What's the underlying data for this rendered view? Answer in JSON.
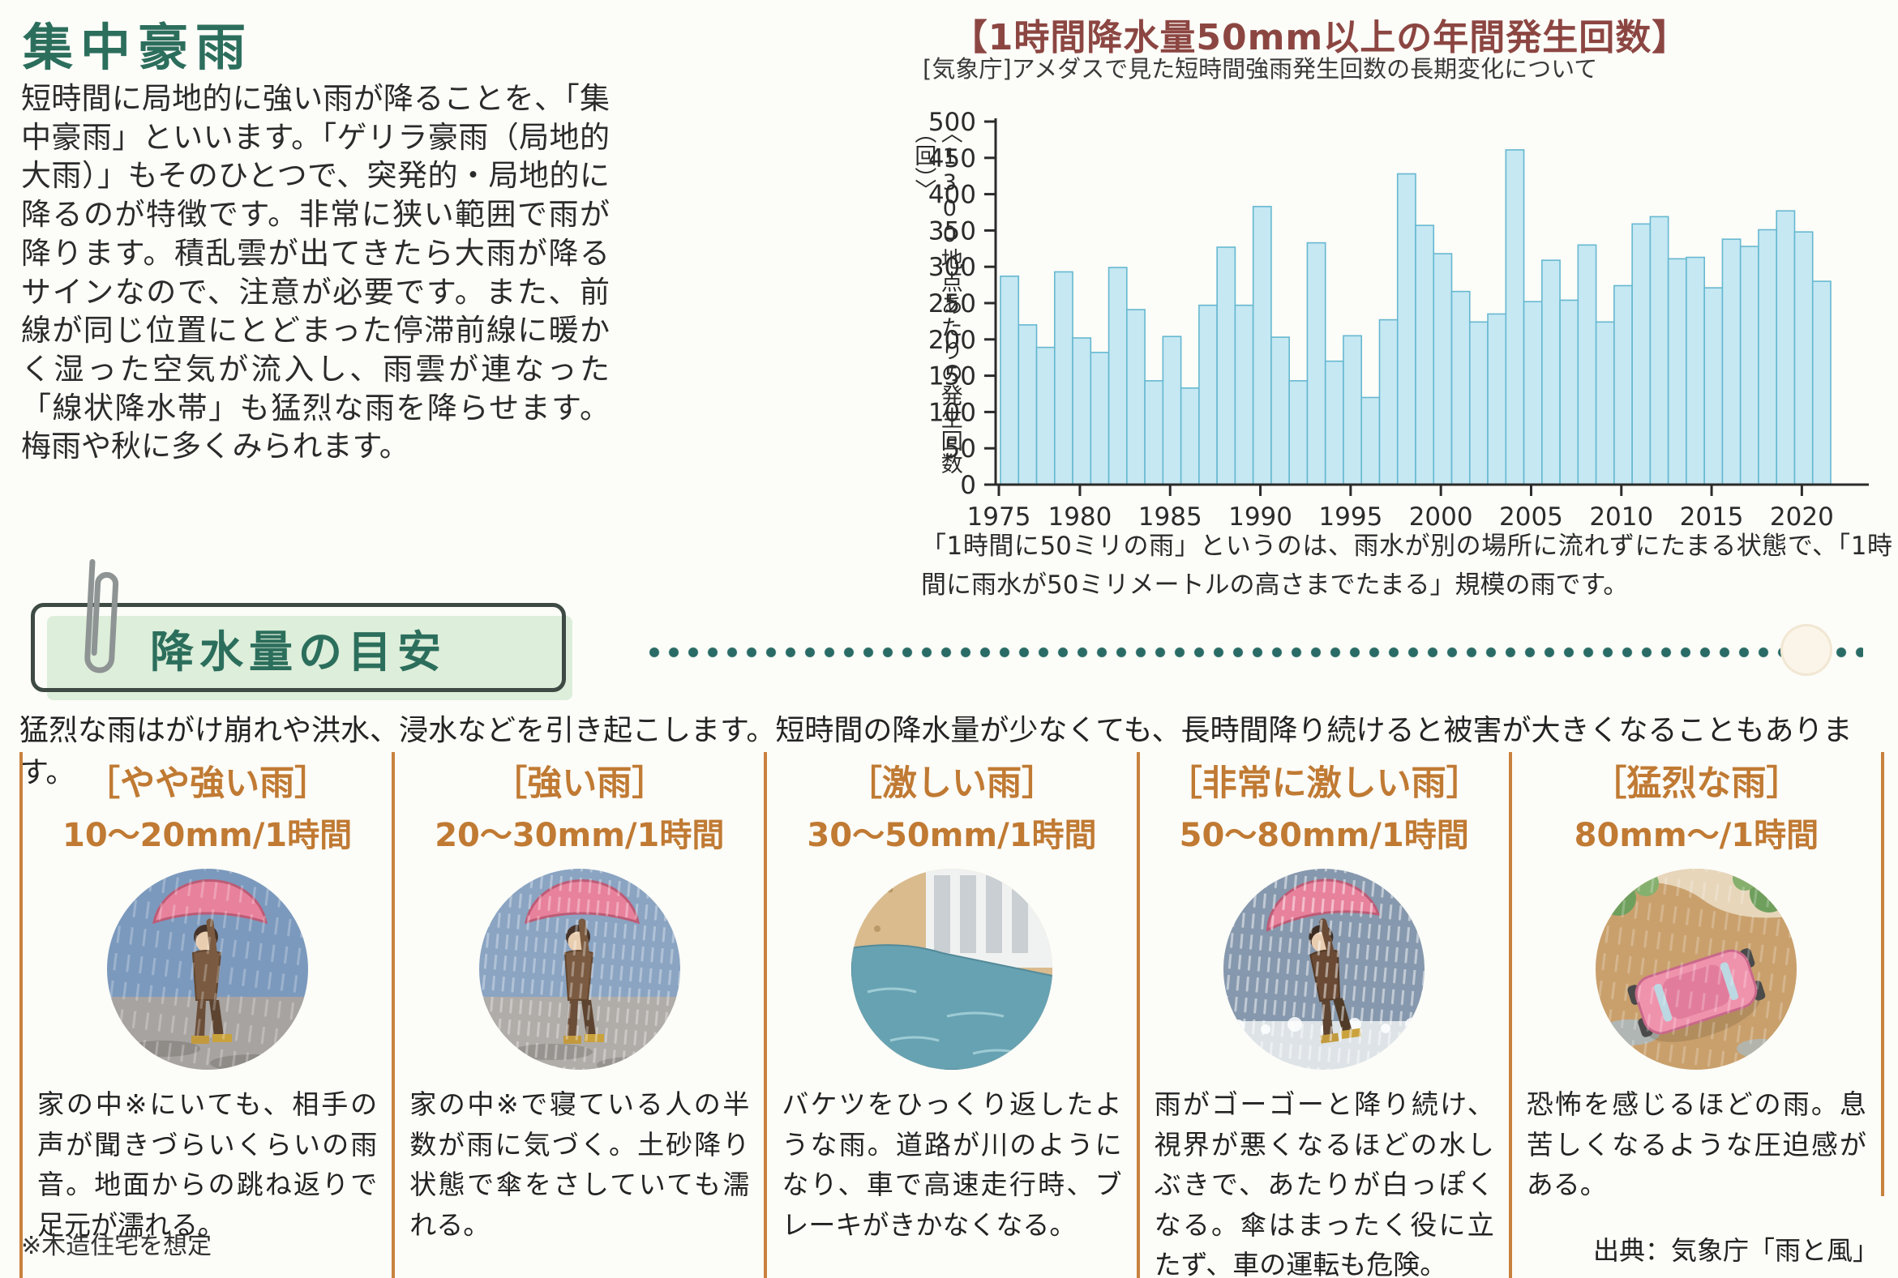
{
  "article": {
    "title": "集中豪雨",
    "body": "短時間に局地的に強い雨が降ることを、「集中豪雨」といいます。「ゲリラ豪雨（局地的大雨）」もそのひとつで、突発的・局地的に降るのが特徴です。非常に狭い範囲で雨が降ります。積乱雲が出てきたら大雨が降るサインなので、注意が必要です。また、前線が同じ位置にとどまった停滞前線に暖かく湿った空気が流入し、雨雲が連なった「線状降水帯」も猛烈な雨を降らせます。梅雨や秋に多くみられます。"
  },
  "chart_data": {
    "type": "bar",
    "title": "【1時間降水量50mm以上の年間発生回数】",
    "subtitle": "[気象庁]アメダスで見た短時間強雨発生回数の長期変化について",
    "ylabel": "〈1300地点あたりの発生回数（回）〉",
    "caption": "「1時間に50ミリの雨」というのは、雨水が別の場所に流れずにたまる状態で、「1時間に雨水が50ミリメートルの高さまでたまる」規模の雨です。",
    "ylim": [
      0,
      500
    ],
    "yticks": [
      0,
      50,
      100,
      150,
      200,
      250,
      300,
      350,
      400,
      450,
      500
    ],
    "xtick_labels": [
      "1975",
      "1980",
      "1985",
      "1990",
      "1995",
      "2000",
      "2005",
      "2010",
      "2015",
      "2020"
    ],
    "grid": false,
    "legend": "none",
    "years": [
      1976,
      1977,
      1978,
      1979,
      1980,
      1981,
      1982,
      1983,
      1984,
      1985,
      1986,
      1987,
      1988,
      1989,
      1990,
      1991,
      1992,
      1993,
      1994,
      1995,
      1996,
      1997,
      1998,
      1999,
      2000,
      2001,
      2002,
      2003,
      2004,
      2005,
      2006,
      2007,
      2008,
      2009,
      2010,
      2011,
      2012,
      2013,
      2014,
      2015,
      2016,
      2017,
      2018,
      2019,
      2020,
      2021
    ],
    "values": [
      287,
      220,
      189,
      293,
      202,
      182,
      299,
      241,
      143,
      204,
      133,
      247,
      327,
      247,
      383,
      203,
      143,
      333,
      170,
      205,
      120,
      227,
      428,
      357,
      318,
      266,
      224,
      235,
      461,
      252,
      309,
      254,
      330,
      224,
      274,
      359,
      369,
      311,
      313,
      271,
      338,
      328,
      351,
      377,
      348,
      280
    ],
    "bar_fill": "#c5e8f3",
    "bar_stroke": "#66b8d0"
  },
  "section_badge": {
    "label": "降水量の目安"
  },
  "section_intro": "猛烈な雨はがけ崩れや洪水、浸水などを引き起こします。短時間の降水量が少なくても、長時間降り続けると被害が大きくなることもあります。",
  "categories": [
    {
      "name": "［やや強い雨］",
      "range": "10～20mm/1時間",
      "desc": "家の中※にいても、相手の声が聞きづらいくらいの雨音。地面からの跳ね返りで足元が濡れる。",
      "illustration": "person-walking-with-umbrella-in-rain"
    },
    {
      "name": "［強い雨］",
      "range": "20～30mm/1時間",
      "desc": "家の中※で寝ている人の半数が雨に気づく。土砂降り状態で傘をさしていても濡れる。",
      "illustration": "person-with-umbrella-in-downpour"
    },
    {
      "name": "［激しい雨］",
      "range": "30～50mm/1時間",
      "desc": "バケツをひっくり返したような雨。道路が川のようになり、車で高速走行時、ブレーキがきかなくなる。",
      "illustration": "flooded-street-beside-building"
    },
    {
      "name": "［非常に激しい雨］",
      "range": "50～80mm/1時間",
      "desc": "雨がゴーゴーと降り続け、視界が悪くなるほどの水しぶきで、あたりが白っぽくなる。傘はまったく役に立たず、車の運転も危険。",
      "illustration": "person-with-umbrella-in-whiteout-spray"
    },
    {
      "name": "［猛烈な雨］",
      "range": "80mm～/1時間",
      "desc": "恐怖を感じるほどの雨。息苦しくなるような圧迫感がある。",
      "illustration": "car-on-flooded-road"
    }
  ],
  "footnote": "※木造住宅を想定",
  "source": "出典：気象庁「雨と風」",
  "colors": {
    "title_green": "#2c6e5c",
    "chart_title_red": "#8c4642",
    "header_orange": "#c07a33",
    "divider_orange": "#c8823e",
    "badge_bg": "#ddeeda",
    "dot_teal": "#2a6b66",
    "bar_fill": "#c5e8f3",
    "bar_stroke": "#66b8d0"
  }
}
